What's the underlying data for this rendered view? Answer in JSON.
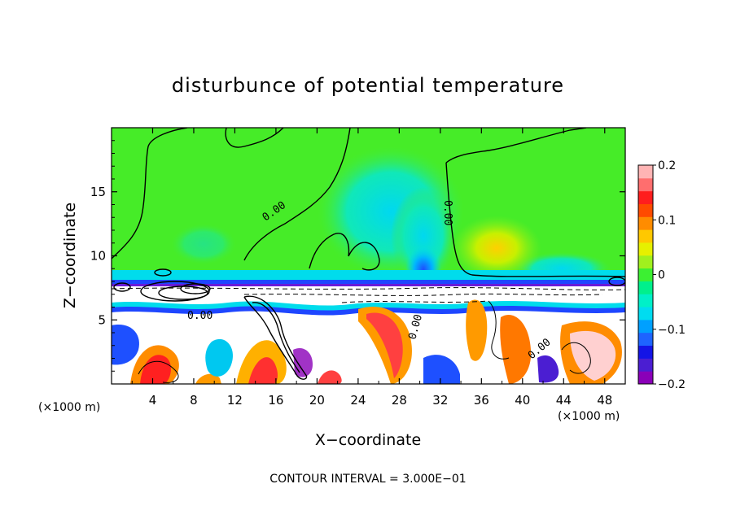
{
  "chart_data": {
    "type": "heatmap",
    "title": "disturbunce of potential temperature",
    "xlabel": "X−coordinate",
    "ylabel": "Z−coordinate",
    "x_unit_label": "(×1000 m)",
    "x_unit_label_right": "(×1000 m)",
    "xlim": [
      0,
      50
    ],
    "ylim": [
      0,
      20
    ],
    "x_ticks": [
      4,
      8,
      12,
      16,
      20,
      24,
      28,
      32,
      36,
      40,
      44,
      48
    ],
    "y_ticks": [
      5,
      10,
      15
    ],
    "x_tick_labels": [
      "4",
      "8",
      "12",
      "16",
      "20",
      "24",
      "28",
      "32",
      "36",
      "40",
      "44",
      "48"
    ],
    "y_tick_labels": [
      "5",
      "10",
      "15"
    ],
    "colorbar": {
      "range": [
        -0.2,
        0.2
      ],
      "ticks": [
        0.2,
        0.1,
        0,
        -0.1,
        -0.2
      ],
      "tick_labels": [
        "0.2",
        "0.1",
        "0",
        "−0.1",
        "−0.2"
      ],
      "colors": [
        "#8a00b8",
        "#4b1ed2",
        "#1414e6",
        "#1e64ff",
        "#00a0ff",
        "#00dcf0",
        "#00f0c8",
        "#00f08c",
        "#3cf032",
        "#a0f01e",
        "#e6f000",
        "#ffc800",
        "#ff8c00",
        "#ff4b00",
        "#ff1e1e",
        "#ff6e6e",
        "#ffb4b4"
      ]
    },
    "contour_labels": [
      "0.00",
      "0.00",
      "0.00",
      "0.00",
      "0.00"
    ],
    "contour_interval_text": "CONTOUR INTERVAL = 3.000E−01"
  },
  "colors": {
    "background_green": "#46ec28",
    "cyan_band": "#00d8e8",
    "deep_blue": "#1a1ae0",
    "line": "#000000"
  }
}
